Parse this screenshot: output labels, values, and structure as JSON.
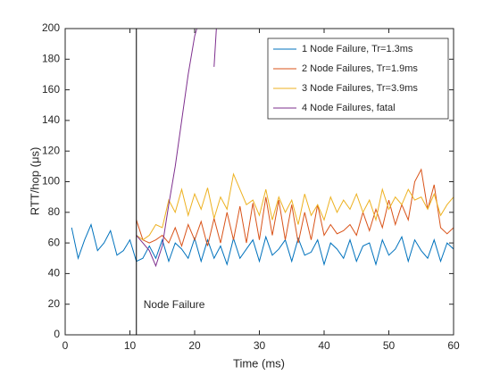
{
  "chart_data": {
    "type": "line",
    "xlabel": "Time (ms)",
    "ylabel": "RTT/hop (μs)",
    "xlim": [
      0,
      60
    ],
    "ylim": [
      0,
      200
    ],
    "xticks": [
      0,
      10,
      20,
      30,
      40,
      50,
      60
    ],
    "yticks": [
      0,
      20,
      40,
      60,
      80,
      100,
      120,
      140,
      160,
      180,
      200
    ],
    "grid": false,
    "legend": "top-right",
    "annotations": [
      {
        "x": 11,
        "text": "Node Failure"
      }
    ],
    "series": [
      {
        "name": "1 Node Failure, Tr=1.3ms",
        "color": "#0072BD",
        "x": [
          1,
          2,
          3,
          4,
          5,
          6,
          7,
          8,
          9,
          10,
          11,
          12,
          13,
          14,
          15,
          16,
          17,
          18,
          19,
          20,
          21,
          22,
          23,
          24,
          25,
          26,
          27,
          28,
          29,
          30,
          31,
          32,
          33,
          34,
          35,
          36,
          37,
          38,
          39,
          40,
          41,
          42,
          43,
          44,
          45,
          46,
          47,
          48,
          49,
          50,
          51,
          52,
          53,
          54,
          55,
          56,
          57,
          58,
          59,
          60
        ],
        "values": [
          70,
          50,
          62,
          72,
          55,
          60,
          68,
          52,
          55,
          62,
          48,
          50,
          58,
          50,
          62,
          48,
          60,
          56,
          50,
          63,
          48,
          62,
          50,
          58,
          46,
          63,
          50,
          56,
          62,
          48,
          64,
          52,
          56,
          62,
          48,
          63,
          52,
          54,
          62,
          46,
          60,
          56,
          50,
          62,
          48,
          58,
          60,
          46,
          62,
          52,
          56,
          64,
          48,
          62,
          55,
          50,
          62,
          48,
          60,
          56
        ]
      },
      {
        "name": "2 Node Failures, Tr=1.9ms",
        "color": "#D95319",
        "x": [
          11,
          12,
          13,
          14,
          15,
          16,
          17,
          18,
          19,
          20,
          21,
          22,
          23,
          24,
          25,
          26,
          27,
          28,
          29,
          30,
          31,
          32,
          33,
          34,
          35,
          36,
          37,
          38,
          39,
          40,
          41,
          42,
          43,
          44,
          45,
          46,
          47,
          48,
          49,
          50,
          51,
          52,
          53,
          54,
          55,
          56,
          57,
          58,
          59,
          60
        ],
        "values": [
          75,
          62,
          60,
          62,
          65,
          60,
          70,
          58,
          72,
          62,
          74,
          58,
          76,
          60,
          80,
          62,
          84,
          60,
          86,
          62,
          90,
          65,
          88,
          62,
          85,
          60,
          80,
          62,
          85,
          65,
          72,
          66,
          68,
          72,
          65,
          80,
          68,
          82,
          70,
          88,
          72,
          85,
          75,
          100,
          108,
          82,
          98,
          70,
          66,
          70
        ]
      },
      {
        "name": "3 Node Failures, Tr=3.9ms",
        "color": "#EDB120",
        "x": [
          11,
          12,
          13,
          14,
          15,
          16,
          17,
          18,
          19,
          20,
          21,
          22,
          23,
          24,
          25,
          26,
          27,
          28,
          29,
          30,
          31,
          32,
          33,
          34,
          35,
          36,
          37,
          38,
          39,
          40,
          41,
          42,
          43,
          44,
          45,
          46,
          47,
          48,
          49,
          50,
          51,
          52,
          53,
          54,
          55,
          56,
          57,
          58,
          59,
          60
        ],
        "values": [
          65,
          62,
          65,
          72,
          70,
          88,
          80,
          95,
          78,
          92,
          82,
          96,
          76,
          90,
          82,
          105,
          95,
          85,
          88,
          78,
          95,
          75,
          90,
          80,
          88,
          72,
          92,
          78,
          85,
          75,
          90,
          80,
          88,
          82,
          92,
          80,
          88,
          75,
          95,
          82,
          90,
          85,
          95,
          88,
          90,
          82,
          92,
          78,
          85,
          90
        ]
      },
      {
        "name": "4 Node Failures, fatal",
        "color": "#7E2F8E",
        "x": [
          11,
          12,
          13,
          14,
          15,
          16,
          17,
          18,
          19,
          20,
          21,
          22,
          23,
          23.5
        ],
        "values": [
          65,
          60,
          55,
          45,
          58,
          85,
          110,
          140,
          170,
          195,
          210,
          null,
          175,
          210
        ]
      }
    ]
  }
}
